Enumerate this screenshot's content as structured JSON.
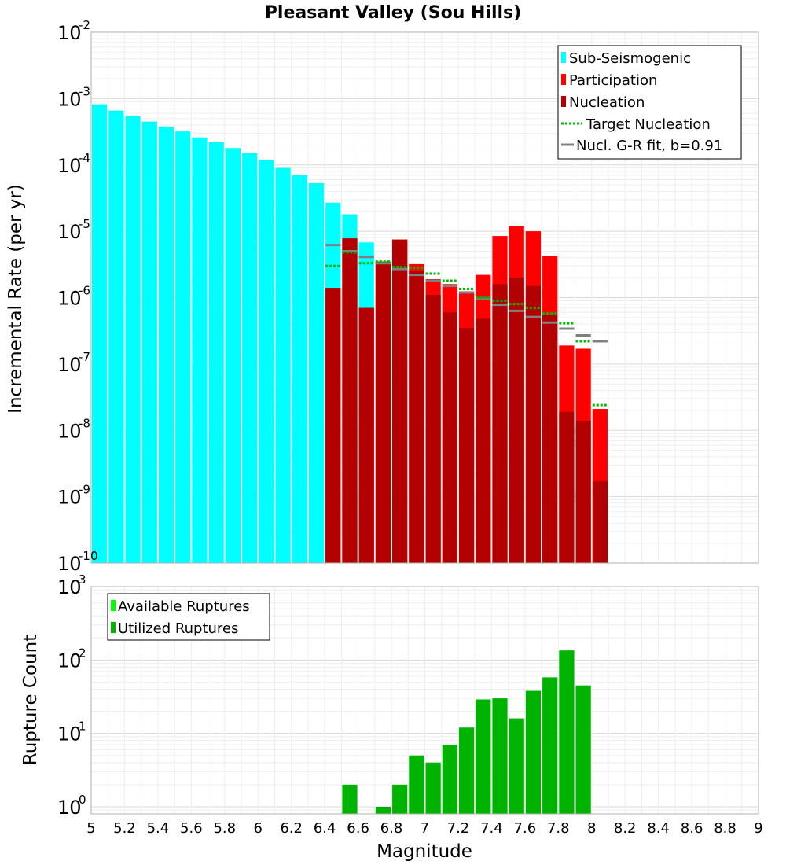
{
  "chart_data": {
    "title": "Pleasant Valley (Sou Hills)",
    "xlabel": "Magnitude",
    "xlim": [
      5,
      9
    ],
    "x_ticks": [
      "5",
      "5.2",
      "5.4",
      "5.6",
      "5.8",
      "6",
      "6.2",
      "6.4",
      "6.6",
      "6.8",
      "7",
      "7.2",
      "7.4",
      "7.6",
      "7.8",
      "8",
      "8.2",
      "8.4",
      "8.6",
      "8.8",
      "9"
    ],
    "bin_width": 0.1,
    "colors": {
      "sub": "#00ffff",
      "participation": "#ff0000",
      "nucleation": "#b30000",
      "target": "#00b800",
      "gr": "#808080",
      "available": "#00ff00",
      "utilized": "#00b300"
    },
    "top_panel": {
      "type": "bar",
      "ylabel": "Incremental Rate (per yr)",
      "yscale": "log",
      "ylim": [
        1e-10,
        0.01
      ],
      "y_ticks": [
        {
          "base": "10",
          "exp": "-2"
        },
        {
          "base": "10",
          "exp": "-3"
        },
        {
          "base": "10",
          "exp": "-4"
        },
        {
          "base": "10",
          "exp": "-5"
        },
        {
          "base": "10",
          "exp": "-6"
        },
        {
          "base": "10",
          "exp": "-7"
        },
        {
          "base": "10",
          "exp": "-8"
        },
        {
          "base": "10",
          "exp": "-9"
        },
        {
          "base": "10",
          "exp": "-10"
        }
      ],
      "legend": {
        "position": "top-right",
        "entries": [
          "Sub-Seismogenic",
          "Participation",
          "Nucleation",
          "Target Nucleation",
          "Nucl. G-R fit, b=0.91"
        ]
      },
      "sub_seismogenic": {
        "x": [
          5.05,
          5.15,
          5.25,
          5.35,
          5.45,
          5.55,
          5.65,
          5.75,
          5.85,
          5.95,
          6.05,
          6.15,
          6.25,
          6.35,
          6.45,
          6.55,
          6.65
        ],
        "values": [
          0.00082,
          0.00066,
          0.00054,
          0.00045,
          0.00038,
          0.00032,
          0.00026,
          0.00022,
          0.00018,
          0.00015,
          0.00012,
          9e-05,
          7e-05,
          5.3e-05,
          2.7e-05,
          1.8e-05,
          6.8e-06
        ]
      },
      "participation": {
        "x": [
          6.45,
          6.55,
          6.65,
          6.75,
          6.85,
          6.95,
          7.05,
          7.15,
          7.25,
          7.35,
          7.45,
          7.55,
          7.65,
          7.75,
          7.85,
          7.95,
          8.05
        ],
        "values": [
          1.4e-06,
          7.8e-06,
          7e-07,
          3.5e-06,
          7.5e-06,
          3.2e-06,
          1.9e-06,
          1.6e-06,
          1.2e-06,
          2.2e-06,
          8.5e-06,
          1.2e-05,
          1e-05,
          4.2e-06,
          1.9e-07,
          1.7e-07,
          2.1e-08
        ]
      },
      "nucleation": {
        "x": [
          6.45,
          6.55,
          6.65,
          6.75,
          6.85,
          6.95,
          7.05,
          7.15,
          7.25,
          7.35,
          7.45,
          7.55,
          7.65,
          7.75,
          7.85,
          7.95,
          8.05
        ],
        "values": [
          1.4e-06,
          7.8e-06,
          7e-07,
          3.5e-06,
          7.5e-06,
          2.5e-06,
          1.1e-06,
          6e-07,
          3.5e-07,
          4.8e-07,
          1.6e-06,
          2e-06,
          1.5e-06,
          5.5e-07,
          1.9e-08,
          1.4e-08,
          1.7e-09
        ]
      },
      "target_nucleation": {
        "x": [
          6.45,
          6.55,
          6.65,
          6.75,
          6.85,
          6.95,
          7.05,
          7.15,
          7.25,
          7.35,
          7.45,
          7.55,
          7.65,
          7.75,
          7.85,
          7.95,
          8.05
        ],
        "values": [
          3e-06,
          4.8e-06,
          3.3e-06,
          3.5e-06,
          2.9e-06,
          2.8e-06,
          2.3e-06,
          1.8e-06,
          1.35e-06,
          1e-06,
          9e-07,
          8e-07,
          7e-07,
          5.8e-07,
          4.1e-07,
          2.2e-07,
          2.4e-08
        ]
      },
      "gr_fit": {
        "x": [
          6.45,
          6.55,
          6.65,
          6.75,
          6.85,
          6.95,
          7.05,
          7.15,
          7.25,
          7.35,
          7.45,
          7.55,
          7.65,
          7.75,
          7.85,
          7.95,
          8.05
        ],
        "values": [
          6.2e-06,
          5e-06,
          4.1e-06,
          3.3e-06,
          2.7e-06,
          2.2e-06,
          1.8e-06,
          1.5e-06,
          1.2e-06,
          9.6e-07,
          7.8e-07,
          6.3e-07,
          5.1e-07,
          4.2e-07,
          3.4e-07,
          2.7e-07,
          2.2e-07
        ]
      }
    },
    "bottom_panel": {
      "type": "bar",
      "ylabel": "Rupture Count",
      "yscale": "log",
      "ylim": [
        0.8,
        1000
      ],
      "y_ticks": [
        {
          "base": "10",
          "exp": "3",
          "value": 1000
        },
        {
          "base": "10",
          "exp": "2",
          "value": 100
        },
        {
          "base": "10",
          "exp": "1",
          "value": 10
        },
        {
          "base": "10",
          "exp": "0",
          "value": 1
        }
      ],
      "legend": {
        "position": "top-left",
        "entries": [
          "Available Ruptures",
          "Utilized Ruptures"
        ]
      },
      "utilized": {
        "x": [
          6.55,
          6.75,
          6.85,
          6.95,
          7.05,
          7.15,
          7.25,
          7.35,
          7.45,
          7.55,
          7.65,
          7.75,
          7.85,
          7.95
        ],
        "values": [
          2,
          1,
          2,
          5,
          4,
          7,
          12,
          29,
          30,
          16,
          38,
          58,
          135,
          45
        ]
      }
    }
  }
}
